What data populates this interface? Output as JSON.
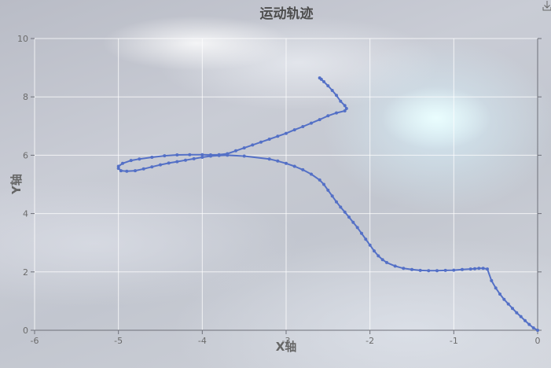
{
  "chart_data": {
    "type": "line",
    "title": "运动轨迹",
    "xlabel": "X轴",
    "ylabel": "Y轴",
    "xlim": [
      -6,
      0
    ],
    "ylim": [
      0,
      10
    ],
    "x_ticks": [
      "-6",
      "-5",
      "-4",
      "-3",
      "-2",
      "-1",
      "0"
    ],
    "y_ticks": [
      "0",
      "2",
      "4",
      "6",
      "8",
      "10"
    ],
    "grid": true,
    "series_color": "#5470c6",
    "series": [
      {
        "points": [
          [
            0,
            0
          ],
          [
            -0.05,
            0.08
          ],
          [
            -0.1,
            0.2
          ],
          [
            -0.15,
            0.33
          ],
          [
            -0.2,
            0.47
          ],
          [
            -0.25,
            0.6
          ],
          [
            -0.3,
            0.75
          ],
          [
            -0.35,
            0.9
          ],
          [
            -0.4,
            1.06
          ],
          [
            -0.45,
            1.24
          ],
          [
            -0.5,
            1.45
          ],
          [
            -0.55,
            1.7
          ],
          [
            -0.6,
            2.1
          ],
          [
            -0.65,
            2.12
          ],
          [
            -0.7,
            2.12
          ],
          [
            -0.75,
            2.11
          ],
          [
            -0.8,
            2.1
          ],
          [
            -0.9,
            2.08
          ],
          [
            -1.0,
            2.06
          ],
          [
            -1.1,
            2.05
          ],
          [
            -1.2,
            2.04
          ],
          [
            -1.3,
            2.04
          ],
          [
            -1.4,
            2.05
          ],
          [
            -1.5,
            2.08
          ],
          [
            -1.6,
            2.12
          ],
          [
            -1.7,
            2.2
          ],
          [
            -1.8,
            2.32
          ],
          [
            -1.85,
            2.42
          ],
          [
            -1.9,
            2.55
          ],
          [
            -1.95,
            2.72
          ],
          [
            -2.0,
            2.92
          ],
          [
            -2.05,
            3.12
          ],
          [
            -2.1,
            3.32
          ],
          [
            -2.15,
            3.52
          ],
          [
            -2.2,
            3.7
          ],
          [
            -2.25,
            3.88
          ],
          [
            -2.3,
            4.05
          ],
          [
            -2.35,
            4.22
          ],
          [
            -2.4,
            4.4
          ],
          [
            -2.45,
            4.6
          ],
          [
            -2.5,
            4.8
          ],
          [
            -2.55,
            5.0
          ],
          [
            -2.6,
            5.15
          ],
          [
            -2.7,
            5.35
          ],
          [
            -2.8,
            5.5
          ],
          [
            -2.9,
            5.62
          ],
          [
            -3.0,
            5.72
          ],
          [
            -3.1,
            5.8
          ],
          [
            -3.2,
            5.87
          ],
          [
            -3.5,
            5.97
          ],
          [
            -3.7,
            6.0
          ],
          [
            -3.8,
            5.99
          ],
          [
            -3.9,
            5.97
          ],
          [
            -4.0,
            5.93
          ],
          [
            -4.1,
            5.88
          ],
          [
            -4.2,
            5.83
          ],
          [
            -4.3,
            5.78
          ],
          [
            -4.4,
            5.73
          ],
          [
            -4.5,
            5.67
          ],
          [
            -4.6,
            5.6
          ],
          [
            -4.7,
            5.53
          ],
          [
            -4.8,
            5.47
          ],
          [
            -4.9,
            5.45
          ],
          [
            -4.97,
            5.47
          ],
          [
            -5.0,
            5.55
          ],
          [
            -5.0,
            5.62
          ],
          [
            -4.95,
            5.72
          ],
          [
            -4.85,
            5.82
          ],
          [
            -4.75,
            5.87
          ],
          [
            -4.6,
            5.93
          ],
          [
            -4.45,
            5.98
          ],
          [
            -4.3,
            6.01
          ],
          [
            -4.15,
            6.02
          ],
          [
            -4.0,
            6.02
          ],
          [
            -3.9,
            6.01
          ],
          [
            -3.8,
            6.02
          ],
          [
            -3.7,
            6.05
          ],
          [
            -3.6,
            6.15
          ],
          [
            -3.5,
            6.25
          ],
          [
            -3.4,
            6.35
          ],
          [
            -3.3,
            6.45
          ],
          [
            -3.2,
            6.55
          ],
          [
            -3.1,
            6.65
          ],
          [
            -3.0,
            6.75
          ],
          [
            -2.9,
            6.87
          ],
          [
            -2.8,
            6.98
          ],
          [
            -2.7,
            7.1
          ],
          [
            -2.6,
            7.22
          ],
          [
            -2.5,
            7.35
          ],
          [
            -2.4,
            7.45
          ],
          [
            -2.3,
            7.52
          ],
          [
            -2.28,
            7.6
          ],
          [
            -2.3,
            7.7
          ],
          [
            -2.35,
            7.85
          ],
          [
            -2.4,
            8.05
          ],
          [
            -2.45,
            8.22
          ],
          [
            -2.5,
            8.38
          ],
          [
            -2.55,
            8.52
          ],
          [
            -2.58,
            8.6
          ],
          [
            -2.6,
            8.65
          ]
        ]
      }
    ]
  },
  "toolbar": {
    "save_icon": "download-icon"
  }
}
